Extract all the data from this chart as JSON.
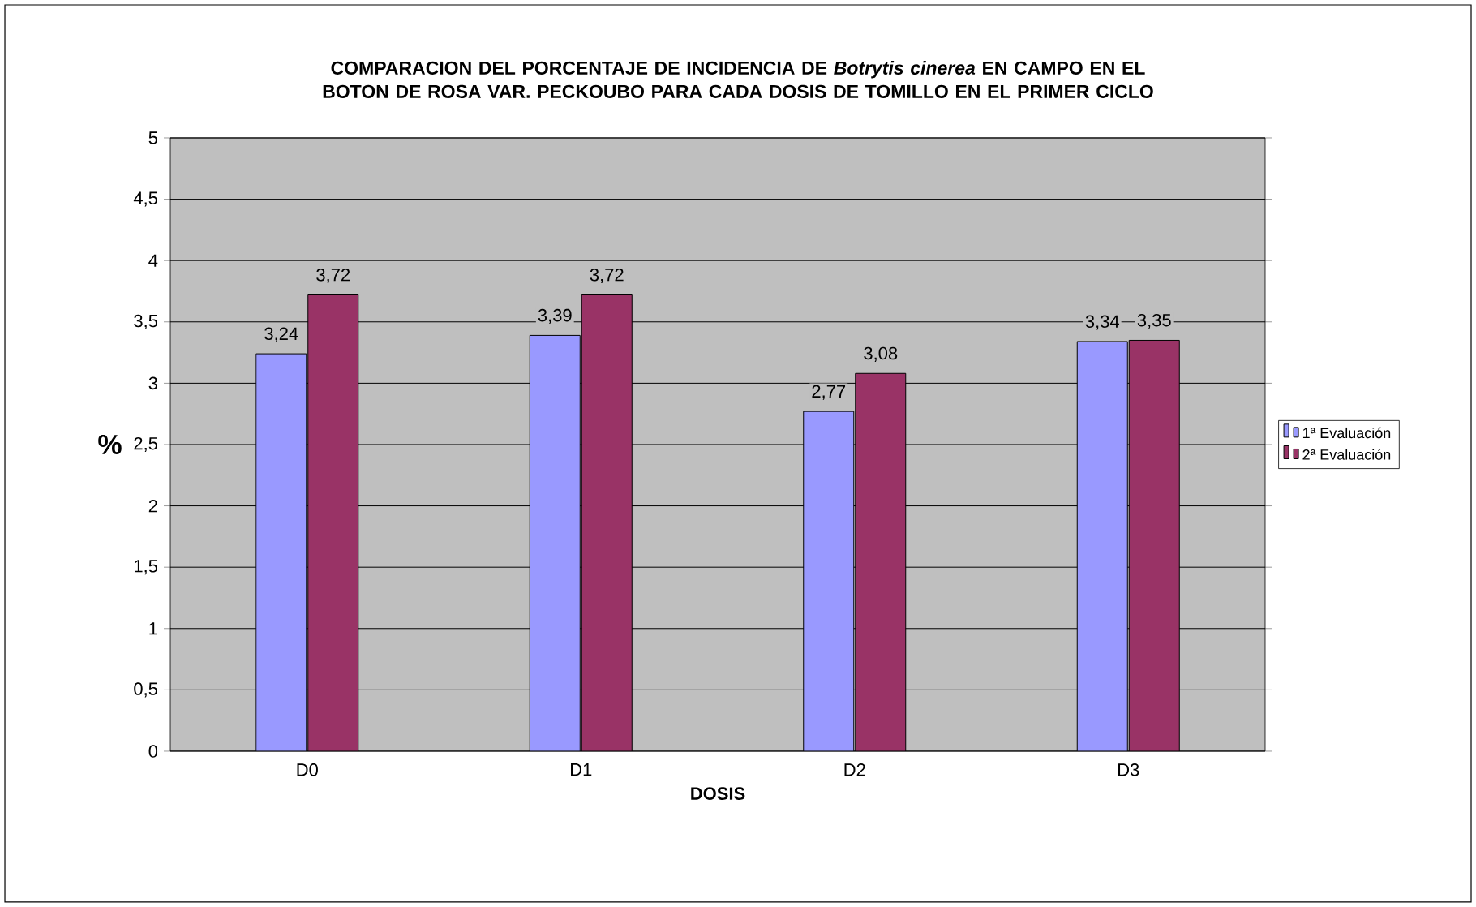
{
  "chart_data": {
    "type": "bar",
    "title": "COMPARACION DEL PORCENTAJE DE INCIDENCIA DE *Botrytis cinerea* EN CAMPO EN EL BOTON DE ROSA VAR. PECKOUBO PARA CADA DOSIS DE TOMILLO EN EL PRIMER CICLO",
    "xlabel": "DOSIS",
    "ylabel": "%",
    "categories": [
      "D0",
      "D1",
      "D2",
      "D3"
    ],
    "series": [
      {
        "name": "1ª Evaluación",
        "color": "#9999ff",
        "values": [
          3.24,
          3.39,
          2.77,
          3.34
        ],
        "value_labels": [
          "3,24",
          "3,39",
          "2,77",
          "3,34"
        ]
      },
      {
        "name": "2ª Evaluación",
        "color": "#993366",
        "values": [
          3.72,
          3.72,
          3.08,
          3.35
        ],
        "value_labels": [
          "3,72",
          "3,72",
          "3,08",
          "3,35"
        ]
      }
    ],
    "ylim": [
      0,
      5
    ],
    "yticks": [
      0,
      {
        "value": 0.5,
        "label": "0,5"
      },
      1,
      {
        "value": 1.5,
        "label": "1,5"
      },
      2,
      {
        "value": 2.5,
        "label": "2,5"
      },
      3,
      {
        "value": 3.5,
        "label": "3,5"
      },
      4,
      {
        "value": 4.5,
        "label": "4,5"
      },
      5
    ],
    "grid": "y",
    "legend": "right"
  }
}
